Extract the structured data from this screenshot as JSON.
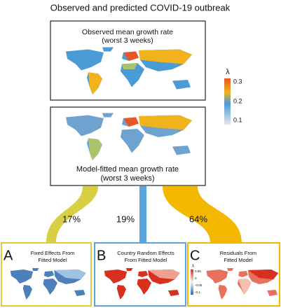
{
  "title": "Observed and predicted COVID-19 outbreak",
  "observed_panel": {
    "title": "Observed mean growth rate",
    "subtitle": "(worst 3 weeks)"
  },
  "fitted_panel": {
    "title": "Model-fitted mean growth rate",
    "subtitle": "(worst 3 weeks)"
  },
  "legend": {
    "symbol": "λ",
    "ticks": [
      "0.3",
      "0.2",
      "0.1"
    ]
  },
  "flows": [
    {
      "label": "17%"
    },
    {
      "label": "19%"
    },
    {
      "label": "64%"
    }
  ],
  "panels": [
    {
      "letter": "A",
      "lines": [
        "Fixed Effects From",
        "Fitted Model"
      ]
    },
    {
      "letter": "B",
      "lines": [
        "Country Random Effects",
        "From Fitted Model"
      ]
    },
    {
      "letter": "C",
      "lines": [
        "Residuals From",
        "Fitted Model"
      ],
      "legend": {
        "symbol": "λ",
        "ticks": [
          "0.05",
          "0",
          "-0.05",
          "-0.1"
        ]
      }
    }
  ]
}
